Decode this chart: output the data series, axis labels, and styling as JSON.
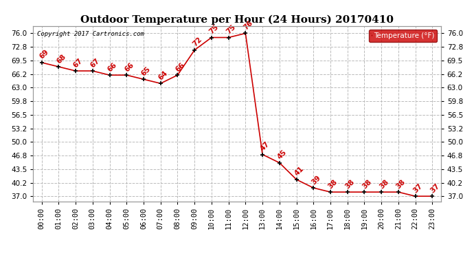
{
  "hours": [
    0,
    1,
    2,
    3,
    4,
    5,
    6,
    7,
    8,
    9,
    10,
    11,
    12,
    13,
    14,
    15,
    16,
    17,
    18,
    19,
    20,
    21,
    22,
    23
  ],
  "temps": [
    69,
    68,
    67,
    67,
    66,
    66,
    65,
    64,
    66,
    72,
    75,
    75,
    76,
    47,
    45,
    41,
    39,
    38,
    38,
    38,
    38,
    38,
    37,
    37
  ],
  "xlabels": [
    "00:00",
    "01:00",
    "02:00",
    "03:00",
    "04:00",
    "05:00",
    "06:00",
    "07:00",
    "08:00",
    "09:00",
    "10:00",
    "11:00",
    "12:00",
    "13:00",
    "14:00",
    "15:00",
    "16:00",
    "17:00",
    "18:00",
    "19:00",
    "20:00",
    "21:00",
    "22:00",
    "23:00"
  ],
  "title": "Outdoor Temperature per Hour (24 Hours) 20170410",
  "copyright": "Copyright 2017 Cartronics.com",
  "legend_label": "Temperature (°F)",
  "line_color": "#cc0000",
  "marker_color": "#000000",
  "background_color": "#ffffff",
  "grid_color": "#bbbbbb",
  "yticks": [
    37.0,
    40.2,
    43.5,
    46.8,
    50.0,
    53.2,
    56.5,
    59.8,
    63.0,
    66.2,
    69.5,
    72.8,
    76.0
  ],
  "ylim": [
    35.8,
    77.8
  ],
  "title_fontsize": 11,
  "label_fontsize": 7.5,
  "annotation_fontsize": 7.5,
  "legend_bg": "#cc0000",
  "legend_fg": "#ffffff"
}
